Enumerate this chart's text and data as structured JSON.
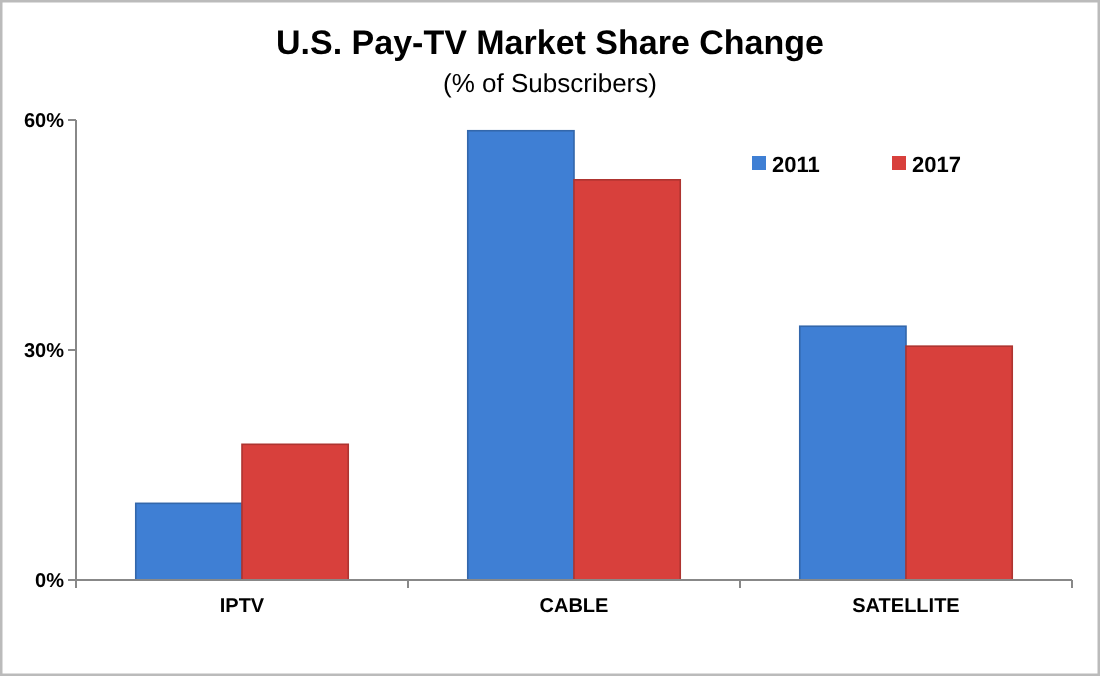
{
  "chart_data": {
    "type": "bar",
    "title": "U.S. Pay-TV Market Share Change",
    "subtitle": "(% of Subscribers)",
    "categories": [
      "IPTV",
      "CABLE",
      "SATELLITE"
    ],
    "series": [
      {
        "name": "2011",
        "color": "#3f7fd4",
        "values": [
          10,
          58.6,
          33.1
        ]
      },
      {
        "name": "2017",
        "color": "#d8403c",
        "values": [
          17.7,
          52.2,
          30.5
        ]
      }
    ],
    "ylim": [
      0,
      60
    ],
    "yticks": [
      {
        "value": 0,
        "label": "0%"
      },
      {
        "value": 30,
        "label": "30%"
      },
      {
        "value": 60,
        "label": "60%"
      }
    ],
    "grid": false,
    "legend": "top right"
  }
}
